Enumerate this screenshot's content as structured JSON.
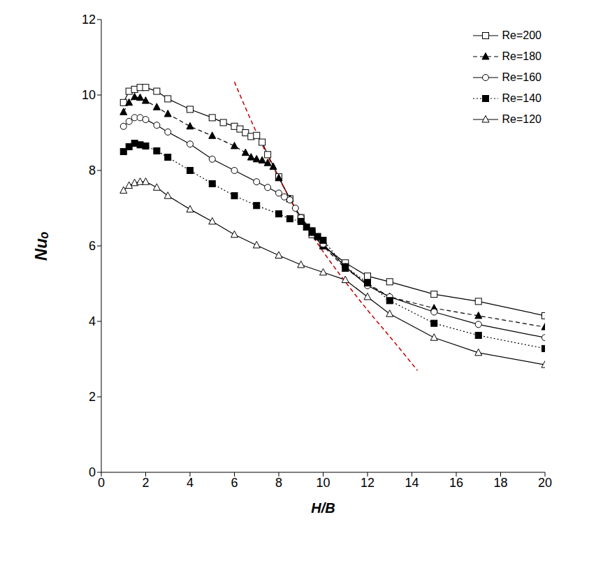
{
  "chart_data": {
    "type": "line",
    "x_label": "H/B",
    "y_label": "Nuₒ",
    "xlim": [
      0,
      20
    ],
    "xticks": [
      0,
      2,
      4,
      6,
      8,
      10,
      12,
      14,
      16,
      18,
      20
    ],
    "ylim": [
      0,
      12
    ],
    "yticks": [
      0,
      2,
      4,
      6,
      8,
      10,
      12
    ],
    "grid": false,
    "legend": "upper right",
    "series": [
      {
        "name": "Re=200",
        "color": "#000000",
        "marker": "open-square",
        "line_style": "solid",
        "x": [
          1,
          1.25,
          1.5,
          1.75,
          2,
          2.5,
          3,
          4,
          5,
          5.5,
          6,
          6.25,
          6.5,
          6.75,
          7,
          7.25,
          7.5,
          8,
          8.5,
          9,
          9.5,
          10,
          11,
          12,
          13,
          15,
          17,
          20
        ],
        "values": [
          9.8,
          10.1,
          10.15,
          10.2,
          10.2,
          10.1,
          9.9,
          9.62,
          9.4,
          9.27,
          9.17,
          9.1,
          9.0,
          8.9,
          8.93,
          8.75,
          8.42,
          7.83,
          7.25,
          6.75,
          6.3,
          6.0,
          5.55,
          5.2,
          5.05,
          4.72,
          4.53,
          4.15
        ]
      },
      {
        "name": "Re=180",
        "color": "#000000",
        "marker": "filled-triangle",
        "line_style": "dashed",
        "x": [
          1,
          1.25,
          1.5,
          1.75,
          2,
          2.5,
          3,
          4,
          5,
          6,
          6.5,
          6.75,
          7,
          7.25,
          7.5,
          7.75,
          8,
          8.5,
          9,
          9.5,
          10,
          11,
          12,
          13,
          15,
          17,
          20
        ],
        "values": [
          9.55,
          9.8,
          9.95,
          9.93,
          9.85,
          9.68,
          9.5,
          9.17,
          8.92,
          8.65,
          8.47,
          8.35,
          8.3,
          8.27,
          8.2,
          8.1,
          7.8,
          7.25,
          6.7,
          6.35,
          6.0,
          5.4,
          5.0,
          4.65,
          4.35,
          4.15,
          3.85
        ]
      },
      {
        "name": "Re=160",
        "color": "#000000",
        "marker": "open-circle",
        "line_style": "solid",
        "x": [
          1,
          1.25,
          1.5,
          1.75,
          2,
          2.5,
          3,
          4,
          5,
          6,
          7,
          7.5,
          8,
          8.25,
          8.5,
          8.75,
          9,
          9.5,
          10,
          11,
          12,
          13,
          15,
          17,
          20
        ],
        "values": [
          9.17,
          9.3,
          9.4,
          9.4,
          9.35,
          9.2,
          9.02,
          8.7,
          8.3,
          8.0,
          7.7,
          7.55,
          7.4,
          7.3,
          7.22,
          7.0,
          6.75,
          6.4,
          6.05,
          5.45,
          4.95,
          4.65,
          4.25,
          3.92,
          3.57
        ]
      },
      {
        "name": "Re=140",
        "color": "#000000",
        "marker": "filled-square",
        "line_style": "dotted",
        "x": [
          1,
          1.25,
          1.5,
          1.75,
          2,
          2.5,
          3,
          4,
          5,
          6,
          7,
          8,
          8.5,
          9,
          9.25,
          9.5,
          9.75,
          10,
          11,
          12,
          13,
          15,
          17,
          20
        ],
        "values": [
          8.5,
          8.63,
          8.72,
          8.68,
          8.65,
          8.52,
          8.35,
          8.0,
          7.65,
          7.33,
          7.07,
          6.85,
          6.72,
          6.65,
          6.5,
          6.4,
          6.25,
          6.15,
          5.45,
          5.02,
          4.55,
          3.95,
          3.63,
          3.28
        ]
      },
      {
        "name": "Re=120",
        "color": "#000000",
        "marker": "open-triangle",
        "line_style": "solid",
        "x": [
          1,
          1.25,
          1.5,
          1.75,
          2,
          2.5,
          3,
          4,
          5,
          6,
          7,
          8,
          9,
          10,
          11,
          12,
          13,
          15,
          17,
          20
        ],
        "values": [
          7.47,
          7.6,
          7.67,
          7.7,
          7.7,
          7.55,
          7.33,
          6.97,
          6.65,
          6.3,
          6.02,
          5.75,
          5.5,
          5.3,
          5.1,
          4.65,
          4.2,
          3.57,
          3.17,
          2.85
        ]
      }
    ],
    "curve": {
      "color": "#c00000",
      "line_style": "dashed",
      "x": [
        6,
        7,
        8,
        9,
        10,
        11,
        12,
        13,
        14.25
      ],
      "values": [
        10.35,
        9.0,
        7.8,
        6.75,
        5.85,
        5.05,
        4.3,
        3.6,
        2.7
      ]
    }
  }
}
